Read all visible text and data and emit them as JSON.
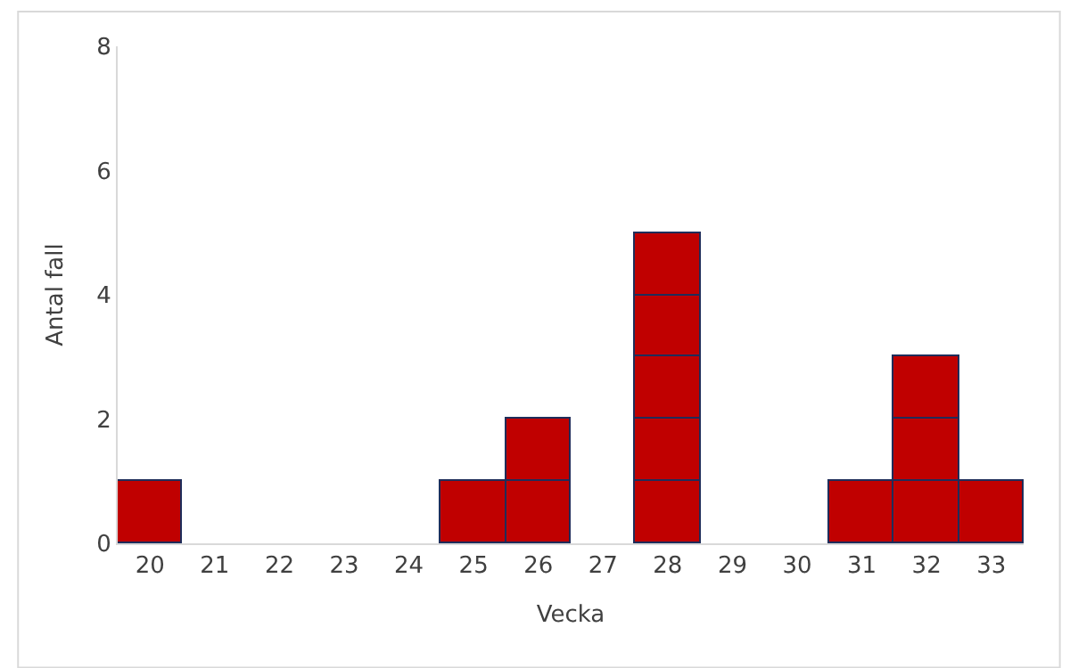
{
  "chart_data": {
    "type": "bar",
    "stacked": true,
    "xlabel": "Vecka",
    "ylabel": "Antal fall",
    "categories": [
      "20",
      "21",
      "22",
      "23",
      "24",
      "25",
      "26",
      "27",
      "28",
      "29",
      "30",
      "31",
      "32",
      "33"
    ],
    "series": [
      {
        "color": "#c00000",
        "values": [
          1,
          null,
          null,
          null,
          null,
          1,
          1,
          null,
          1,
          null,
          null,
          1,
          1,
          1
        ]
      },
      {
        "color": "#c00000",
        "values": [
          null,
          null,
          null,
          null,
          null,
          null,
          1,
          null,
          1,
          null,
          null,
          null,
          1,
          null
        ]
      },
      {
        "color": "#c00000",
        "values": [
          null,
          null,
          null,
          null,
          null,
          null,
          null,
          null,
          1,
          null,
          null,
          null,
          1,
          null
        ]
      },
      {
        "color": "#c00000",
        "values": [
          null,
          null,
          null,
          null,
          null,
          null,
          null,
          null,
          1,
          null,
          null,
          null,
          null,
          null
        ]
      },
      {
        "color": "#c00000",
        "values": [
          null,
          null,
          null,
          null,
          null,
          null,
          null,
          null,
          1,
          null,
          null,
          null,
          null,
          null
        ]
      }
    ],
    "ylim": [
      0,
      8
    ],
    "yticks": [
      0,
      2,
      4,
      6,
      8
    ],
    "grid": false
  }
}
